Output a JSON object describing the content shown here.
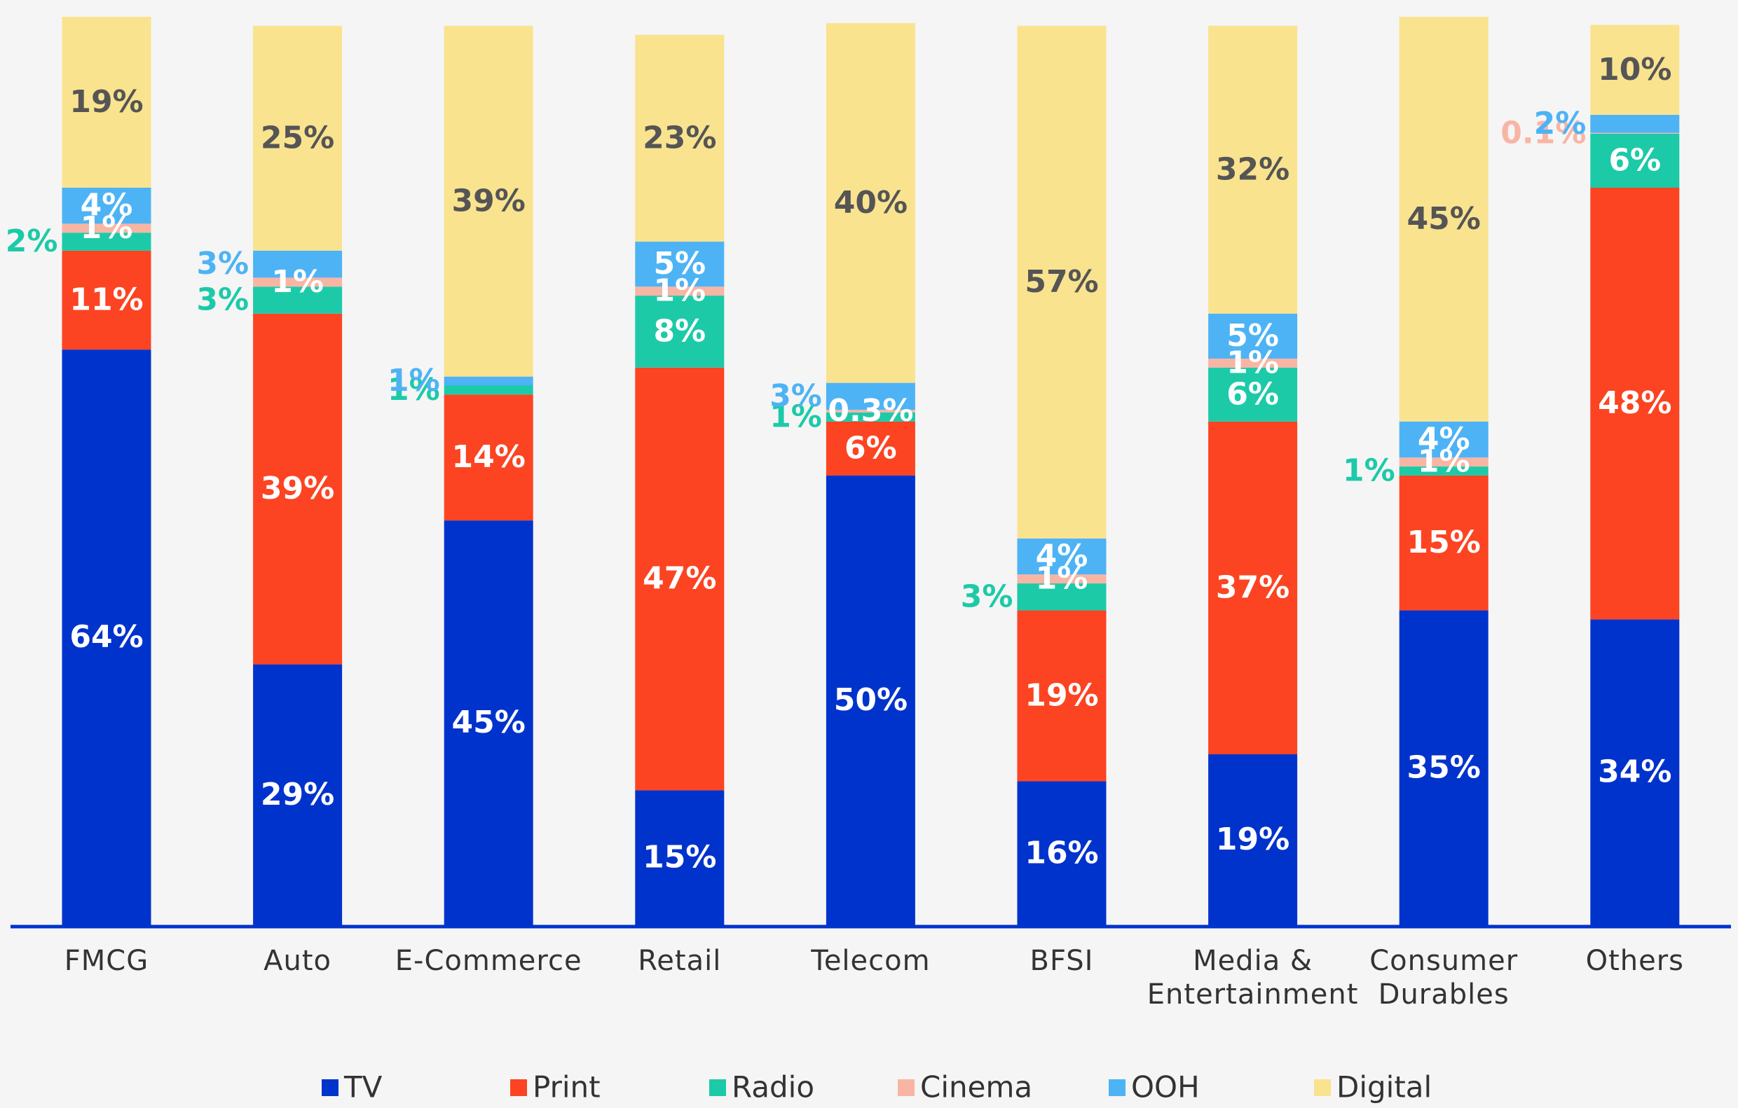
{
  "chart_data": {
    "type": "stacked_bar",
    "categories": [
      "FMCG",
      "Auto",
      "E-Commerce",
      "Retail",
      "Telecom",
      "BFSI",
      "Media & Entertainment",
      "Consumer Durables",
      "Others"
    ],
    "ylim": [
      0,
      101
    ],
    "legend": "bottom",
    "series": [
      {
        "name": "TV",
        "color": "#0033cc",
        "values": [
          64,
          29,
          45,
          15,
          50,
          16,
          19,
          35,
          34
        ],
        "value_labels": [
          "64%",
          "29%",
          "45%",
          "15%",
          "50%",
          "16%",
          "19%",
          "35%",
          "34%"
        ]
      },
      {
        "name": "Print",
        "color": "#fc4422",
        "values": [
          11,
          39,
          14,
          47,
          6,
          19,
          37,
          15,
          48
        ],
        "value_labels": [
          "11%",
          "39%",
          "14%",
          "47%",
          "6%",
          "19%",
          "37%",
          "15%",
          "48%"
        ]
      },
      {
        "name": "Radio",
        "color": "#1ccaa8",
        "values": [
          2,
          3,
          1,
          8,
          1,
          3,
          6,
          1,
          6
        ],
        "value_labels": [
          "2%",
          "3%",
          "1%",
          "8%",
          "1%",
          "3%",
          "6%",
          "1%",
          "6%"
        ]
      },
      {
        "name": "Cinema",
        "color": "#f9b5a4",
        "values": [
          1,
          1,
          null,
          1,
          0.3,
          1,
          1,
          1,
          0.1
        ],
        "value_labels": [
          "1%",
          "1%",
          null,
          "1%",
          "0.3%",
          "1%",
          "1%",
          "1%",
          "0.1%"
        ]
      },
      {
        "name": "OOH",
        "color": "#4db3f5",
        "values": [
          4,
          3,
          1,
          5,
          3,
          4,
          5,
          4,
          2
        ],
        "value_labels": [
          "4%",
          "3%",
          "1%",
          "5%",
          "3%",
          "4%",
          "5%",
          "4%",
          "2%"
        ]
      },
      {
        "name": "Digital",
        "color": "#f9e38f",
        "values": [
          19,
          25,
          39,
          23,
          40,
          57,
          32,
          45,
          10
        ],
        "value_labels": [
          "19%",
          "25%",
          "39%",
          "23%",
          "40%",
          "57%",
          "32%",
          "45%",
          "10%"
        ]
      }
    ]
  }
}
